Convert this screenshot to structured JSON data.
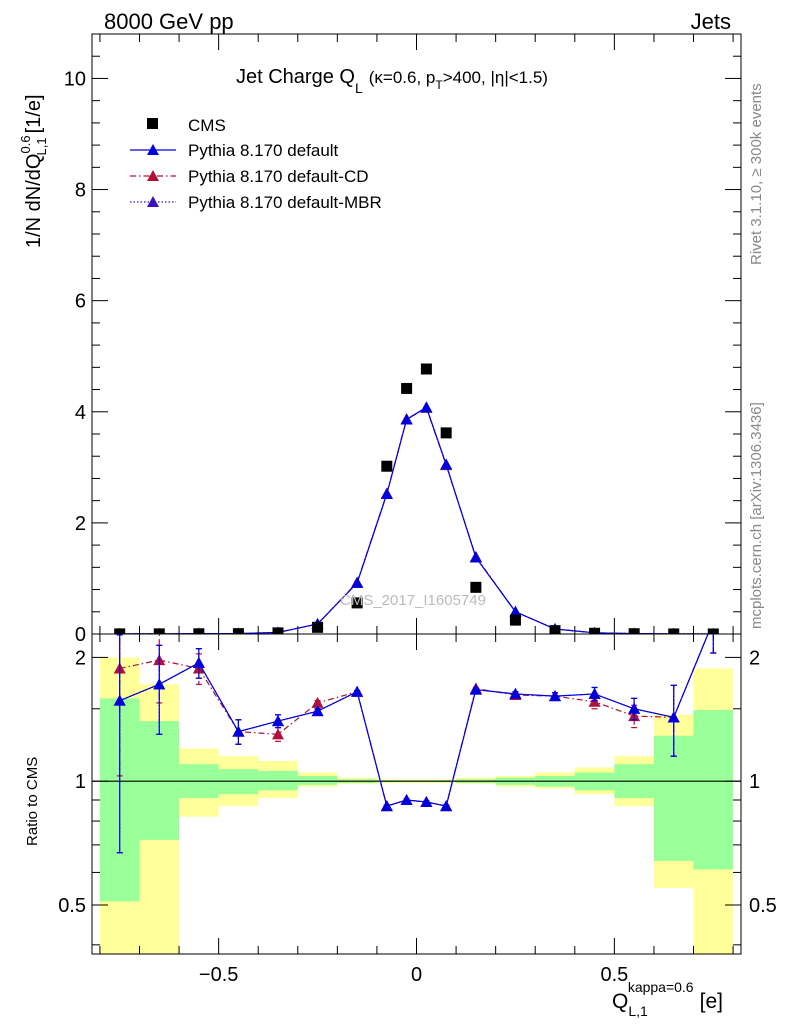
{
  "header": {
    "energy_label": "8000 GeV pp",
    "process_label": "Jets"
  },
  "side_labels": {
    "rivet": "Rivet 3.1.10, ≥ 300k events",
    "mcplots": "mcplots.cern.ch [arXiv:1306.3436]"
  },
  "chart_data": [
    {
      "type": "scatter",
      "panel": "main",
      "title": "Jet Charge Q",
      "title_sub": "L",
      "title_cuts": "(κ=0.6, p",
      "title_cuts_sub": "T",
      "title_cuts_rest": ">400, |η|<1.5)",
      "ylabel": "1/N dN/dQ",
      "ylabel_sup": "0.6",
      "ylabel_sub": "L,1",
      "ylabel_unit": "[1/e]",
      "xlim": [
        -0.82,
        0.82
      ],
      "ylim": [
        0,
        10.8
      ],
      "yticks": [
        0,
        2,
        4,
        6,
        8,
        10
      ],
      "ytick_labels": [
        "0",
        "2",
        "4",
        "6",
        "8",
        "10"
      ],
      "watermark": "CMS_2017_I1605749",
      "legend_position": "top-left",
      "x": [
        -0.75,
        -0.65,
        -0.55,
        -0.45,
        -0.35,
        -0.25,
        -0.15,
        -0.075,
        -0.025,
        0.025,
        0.075,
        0.15,
        0.25,
        0.35,
        0.45,
        0.55,
        0.65,
        0.75
      ],
      "series": [
        {
          "name": "CMS",
          "color": "#000000",
          "marker": "square",
          "values": [
            0.002,
            0.002,
            0.004,
            0.006,
            0.02,
            0.12,
            0.56,
            3.02,
            4.42,
            4.77,
            3.62,
            0.84,
            0.25,
            0.06,
            0.013,
            0.005,
            0.001,
            0.0005
          ]
        },
        {
          "name": "Pythia 8.170 default",
          "color": "#0000dd",
          "marker": "triangle",
          "line": "solid",
          "values": [
            0.003,
            0.003,
            0.008,
            0.008,
            0.028,
            0.18,
            0.92,
            2.52,
            3.86,
            4.08,
            3.05,
            1.38,
            0.4,
            0.09,
            0.021,
            0.008,
            0.0018,
            0.0015
          ]
        },
        {
          "name": "Pythia 8.170 default-CD",
          "color": "#b0103a",
          "marker": "triangle",
          "line": "dashdot",
          "values": [
            0.004,
            0.004,
            0.008,
            0.008,
            0.027,
            0.18,
            0.93,
            2.53,
            3.87,
            4.07,
            3.04,
            1.39,
            0.4,
            0.09,
            0.021,
            0.008,
            0.0017,
            0.0015
          ]
        },
        {
          "name": "Pythia 8.170 default-MBR",
          "color": "#3a10c0",
          "marker": "triangle",
          "line": "dotted",
          "values": [
            0.003,
            0.003,
            0.008,
            0.008,
            0.028,
            0.18,
            0.92,
            2.52,
            3.86,
            4.08,
            3.05,
            1.38,
            0.4,
            0.09,
            0.021,
            0.008,
            0.0018,
            0.0015
          ]
        }
      ]
    },
    {
      "type": "scatter",
      "panel": "ratio",
      "ylabel": "Ratio to CMS",
      "xlabel": "Q",
      "xlabel_sub": "L,1",
      "xlabel_sup": "kappa=0.6",
      "xlabel_unit": "[e]",
      "xlim": [
        -0.82,
        0.82
      ],
      "ylim": [
        0.38,
        2.28
      ],
      "scale": "log",
      "xticks": [
        -0.5,
        0,
        0.5
      ],
      "xtick_labels": [
        "−0.5",
        "0",
        "0.5"
      ],
      "yticks": [
        0.5,
        1,
        2
      ],
      "ytick_labels": [
        "0.5",
        "1",
        "2"
      ],
      "bins": [
        [
          -0.8,
          -0.7
        ],
        [
          -0.7,
          -0.6
        ],
        [
          -0.6,
          -0.5
        ],
        [
          -0.5,
          -0.4
        ],
        [
          -0.4,
          -0.3
        ],
        [
          -0.3,
          -0.2
        ],
        [
          -0.2,
          -0.1
        ],
        [
          -0.1,
          -0.05
        ],
        [
          -0.05,
          0
        ],
        [
          0,
          0.05
        ],
        [
          0.05,
          0.1
        ],
        [
          0.1,
          0.2
        ],
        [
          0.2,
          0.3
        ],
        [
          0.3,
          0.4
        ],
        [
          0.4,
          0.5
        ],
        [
          0.5,
          0.6
        ],
        [
          0.6,
          0.7
        ],
        [
          0.7,
          0.8
        ]
      ],
      "band_stat": [
        [
          0.51,
          1.59
        ],
        [
          0.72,
          1.4
        ],
        [
          0.91,
          1.1
        ],
        [
          0.93,
          1.07
        ],
        [
          0.95,
          1.06
        ],
        [
          0.98,
          1.03
        ],
        [
          0.99,
          1.01
        ],
        [
          0.995,
          1.006
        ],
        [
          0.996,
          1.005
        ],
        [
          0.996,
          1.005
        ],
        [
          0.995,
          1.006
        ],
        [
          0.99,
          1.01
        ],
        [
          0.98,
          1.02
        ],
        [
          0.97,
          1.03
        ],
        [
          0.95,
          1.05
        ],
        [
          0.91,
          1.1
        ],
        [
          0.64,
          1.29
        ],
        [
          0.61,
          1.49
        ]
      ],
      "band_total": [
        [
          0.38,
          2.0
        ],
        [
          0.38,
          1.72
        ],
        [
          0.82,
          1.2
        ],
        [
          0.87,
          1.15
        ],
        [
          0.91,
          1.12
        ],
        [
          0.97,
          1.05
        ],
        [
          0.985,
          1.02
        ],
        [
          0.99,
          1.01
        ],
        [
          0.99,
          1.01
        ],
        [
          0.99,
          1.01
        ],
        [
          0.99,
          1.01
        ],
        [
          0.985,
          1.02
        ],
        [
          0.97,
          1.03
        ],
        [
          0.96,
          1.05
        ],
        [
          0.93,
          1.08
        ],
        [
          0.87,
          1.15
        ],
        [
          0.55,
          1.45
        ],
        [
          0.38,
          1.88
        ]
      ],
      "band_stat_color": "#99ff99",
      "band_total_color": "#ffff99",
      "x": [
        -0.75,
        -0.65,
        -0.55,
        -0.45,
        -0.35,
        -0.25,
        -0.15,
        -0.075,
        -0.025,
        0.025,
        0.075,
        0.15,
        0.25,
        0.35,
        0.45,
        0.55,
        0.65,
        0.75
      ],
      "series": [
        {
          "name": "Pythia 8.170 default",
          "color": "#0000dd",
          "line": "solid",
          "values": [
            1.57,
            1.72,
            1.94,
            1.32,
            1.4,
            1.48,
            1.65,
            0.87,
            0.9,
            0.89,
            0.87,
            1.67,
            1.63,
            1.61,
            1.63,
            1.5,
            1.43,
            2.45
          ],
          "err_low": [
            0.9,
            0.42,
            0.16,
            0.09,
            0.05,
            0.02,
            0.01,
            0.005,
            0.005,
            0.005,
            0.005,
            0.01,
            0.02,
            0.03,
            0.06,
            0.09,
            0.28,
            0.4
          ],
          "err_high": [
            0.7,
            0.42,
            0.16,
            0.09,
            0.05,
            0.02,
            0.01,
            0.005,
            0.005,
            0.005,
            0.005,
            0.01,
            0.02,
            0.03,
            0.06,
            0.09,
            0.28,
            0.4
          ]
        },
        {
          "name": "Pythia 8.170 default-CD",
          "color": "#b0103a",
          "line": "dashdot",
          "values": [
            1.88,
            1.97,
            1.88,
            1.32,
            1.3,
            1.55,
            1.65,
            0.87,
            0.9,
            0.89,
            0.87,
            1.68,
            1.62,
            1.61,
            1.56,
            1.44,
            1.43,
            2.45
          ],
          "err_low": [
            0.85,
            0.42,
            0.16,
            0.09,
            0.05,
            0.02,
            0.01,
            0.005,
            0.005,
            0.005,
            0.005,
            0.01,
            0.02,
            0.03,
            0.06,
            0.09,
            0.28,
            0.4
          ],
          "err_high": [
            0.7,
            0.42,
            0.16,
            0.09,
            0.05,
            0.02,
            0.01,
            0.005,
            0.005,
            0.005,
            0.005,
            0.01,
            0.02,
            0.03,
            0.06,
            0.09,
            0.28,
            0.4
          ]
        },
        {
          "name": "Pythia 8.170 default-MBR",
          "color": "#3a10c0",
          "line": "dotted",
          "values": [
            1.57,
            1.72,
            1.94,
            1.32,
            1.4,
            1.48,
            1.65,
            0.87,
            0.9,
            0.89,
            0.87,
            1.67,
            1.63,
            1.61,
            1.63,
            1.5,
            1.43,
            2.45
          ],
          "err_low": [
            0.9,
            0.42,
            0.16,
            0.09,
            0.05,
            0.02,
            0.01,
            0.005,
            0.005,
            0.005,
            0.005,
            0.01,
            0.02,
            0.03,
            0.06,
            0.09,
            0.28,
            0.4
          ],
          "err_high": [
            0.7,
            0.42,
            0.16,
            0.09,
            0.05,
            0.02,
            0.01,
            0.005,
            0.005,
            0.005,
            0.005,
            0.01,
            0.02,
            0.03,
            0.06,
            0.09,
            0.28,
            0.4
          ]
        }
      ]
    }
  ]
}
